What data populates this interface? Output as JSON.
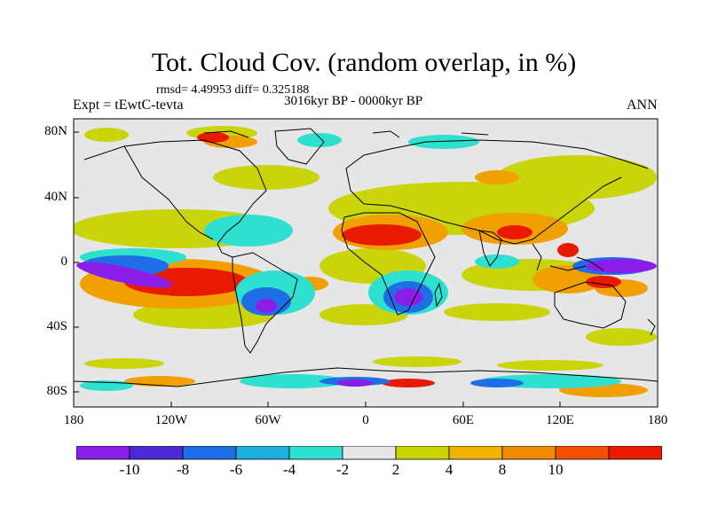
{
  "title": "Tot. Cloud Cov. (random overlap, in %)",
  "stats": "rmsd= 4.49953 diff= 0.325188",
  "expt": "Expt = tEwtC-tevta",
  "period": "3016kyr BP - 0000kyr BP",
  "season": "ANN",
  "map": {
    "lon_labels": [
      "180",
      "120W",
      "60W",
      "0",
      "60E",
      "120E",
      "180"
    ],
    "lat_labels": [
      "80N",
      "40N",
      "0",
      "40S",
      "80S"
    ],
    "background_color": "#e6e6e6",
    "coast_color": "#000000"
  },
  "colorbar": {
    "colors": [
      "#8a1de8",
      "#4b2ad6",
      "#1e6ee6",
      "#1fb0e0",
      "#2ee0d0",
      "#e6e6e6",
      "#c8d400",
      "#f0b400",
      "#f08c00",
      "#f05000",
      "#e81a00"
    ],
    "labels": [
      "-10",
      "-8",
      "-6",
      "-4",
      "-2",
      "2",
      "4",
      "8",
      "10"
    ]
  }
}
